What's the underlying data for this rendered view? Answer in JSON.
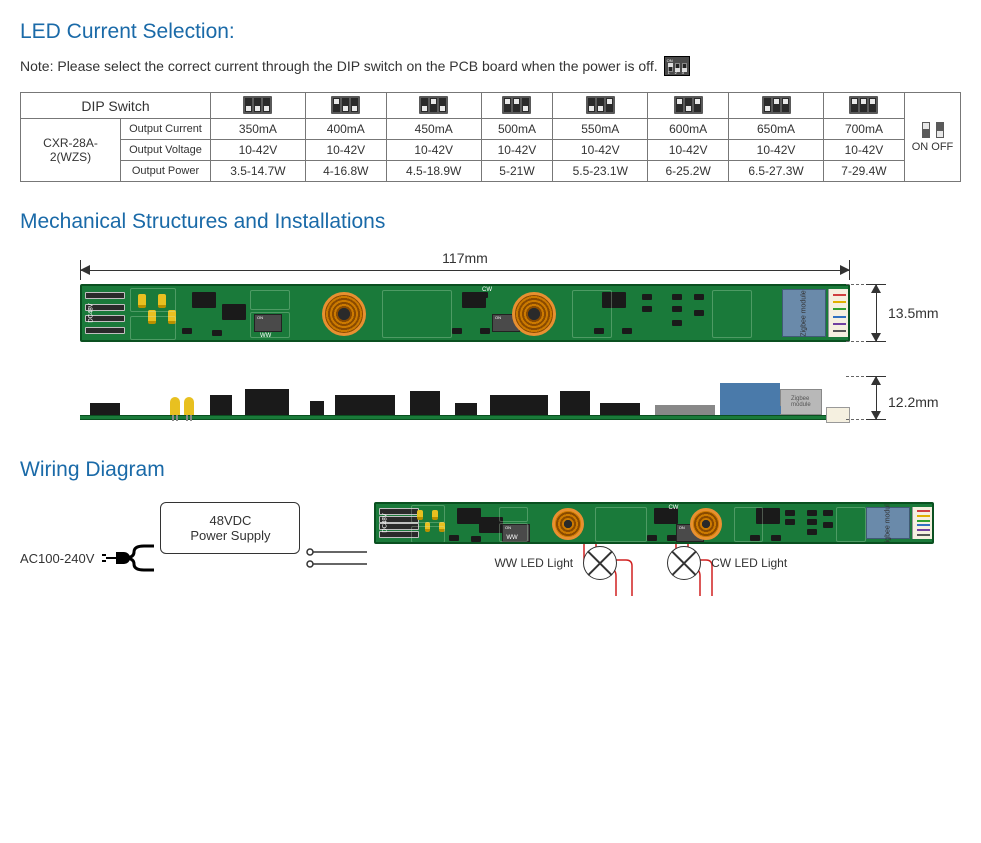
{
  "colors": {
    "heading": "#1a6aa8",
    "text": "#333333",
    "border": "#777777",
    "pcb_green": "#1a7a3a",
    "pcb_border": "#0a5020",
    "coil_copper": "#e89030",
    "cap_yellow": "#e8c020",
    "chip_black": "#1a1a1a",
    "zigbee_blue": "#6a8aaa",
    "connector_cream": "#f5f0e0",
    "wire_red": "#d02020",
    "dip_body": "#5a5a5a",
    "dip_knob": "#e8e8e8"
  },
  "title1": "LED Current Selection:",
  "note_text": "Note: Please select the correct current through the DIP switch on the PCB board when the power is off.",
  "table": {
    "header_dip": "DIP Switch",
    "model": "CXR-28A-2(WZS)",
    "row_labels": [
      "Output Current",
      "Output Voltage",
      "Output Power"
    ],
    "columns": [
      {
        "pattern": [
          "dn",
          "dn",
          "dn"
        ],
        "current": "350mA",
        "voltage": "10-42V",
        "power": "3.5-14.7W"
      },
      {
        "pattern": [
          "up",
          "dn",
          "dn"
        ],
        "current": "400mA",
        "voltage": "10-42V",
        "power": "4-16.8W"
      },
      {
        "pattern": [
          "dn",
          "up",
          "dn"
        ],
        "current": "450mA",
        "voltage": "10-42V",
        "power": "4.5-18.9W"
      },
      {
        "pattern": [
          "up",
          "up",
          "dn"
        ],
        "current": "500mA",
        "voltage": "10-42V",
        "power": "5-21W"
      },
      {
        "pattern": [
          "dn",
          "dn",
          "up"
        ],
        "current": "550mA",
        "voltage": "10-42V",
        "power": "5.5-23.1W"
      },
      {
        "pattern": [
          "up",
          "dn",
          "up"
        ],
        "current": "600mA",
        "voltage": "10-42V",
        "power": "6-25.2W"
      },
      {
        "pattern": [
          "dn",
          "up",
          "up"
        ],
        "current": "650mA",
        "voltage": "10-42V",
        "power": "6.5-27.3W"
      },
      {
        "pattern": [
          "up",
          "up",
          "up"
        ],
        "current": "700mA",
        "voltage": "10-42V",
        "power": "7-29.4W"
      }
    ],
    "onoff_label": "ON OFF"
  },
  "title2": "Mechanical Structures and Installations",
  "dimensions": {
    "length": "117mm",
    "width": "13.5mm",
    "height": "12.2mm"
  },
  "pcb": {
    "dc_label": "DC48V",
    "zigbee_label": "Zigbee module",
    "cw_label": "CW",
    "ww_label": "WW",
    "connector_pin_colors": [
      "#d04040",
      "#e0b000",
      "#30a030",
      "#3070c0",
      "#7040a0",
      "#555555"
    ]
  },
  "title3": "Wiring Diagram",
  "wiring": {
    "ac_label": "AC100-240V",
    "psu_line1": "48VDC",
    "psu_line2": "Power Supply",
    "ww_led": "WW LED Light",
    "cw_led": "CW LED Light"
  }
}
